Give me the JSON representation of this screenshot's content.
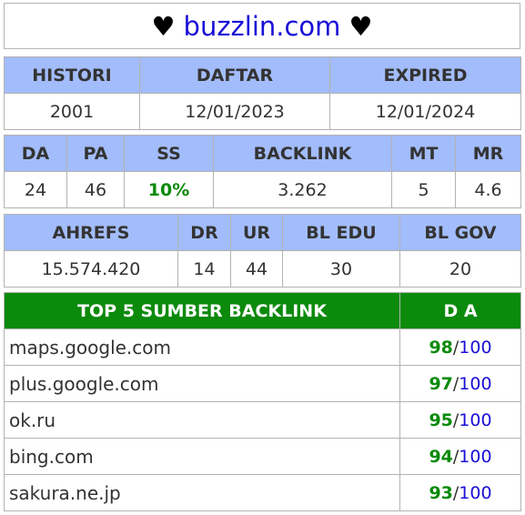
{
  "header": {
    "heart_left": "♥",
    "domain": "buzzlin.com",
    "heart_right": "♥"
  },
  "registration": {
    "headers": [
      "HISTORI",
      "DAFTAR",
      "EXPIRED"
    ],
    "values": [
      "2001",
      "12/01/2023",
      "12/01/2024"
    ]
  },
  "metrics": {
    "headers": [
      "DA",
      "PA",
      "SS",
      "BACKLINK",
      "MT",
      "MR"
    ],
    "values": [
      "24",
      "46",
      "10%",
      "3.262",
      "5",
      "4.6"
    ],
    "ss_color": "#0a8a0a"
  },
  "ahrefs": {
    "headers": [
      "AHREFS",
      "DR",
      "UR",
      "BL EDU",
      "BL GOV"
    ],
    "values": [
      "15.574.420",
      "14",
      "44",
      "30",
      "20"
    ]
  },
  "top_backlinks": {
    "header_source": "TOP 5 SUMBER BACKLINK",
    "header_da": "D A",
    "separator": "/",
    "rows": [
      {
        "site": "maps.google.com",
        "score": "98",
        "max": "100"
      },
      {
        "site": "plus.google.com",
        "score": "97",
        "max": "100"
      },
      {
        "site": "ok.ru",
        "score": "95",
        "max": "100"
      },
      {
        "site": "bing.com",
        "score": "94",
        "max": "100"
      },
      {
        "site": "sakura.ne.jp",
        "score": "93",
        "max": "100"
      }
    ]
  },
  "colors": {
    "header_bg": "#a3bcfb",
    "top_header_bg": "#0c8a0c",
    "link_blue": "#1a0fd6",
    "green": "#0a8a0a"
  }
}
